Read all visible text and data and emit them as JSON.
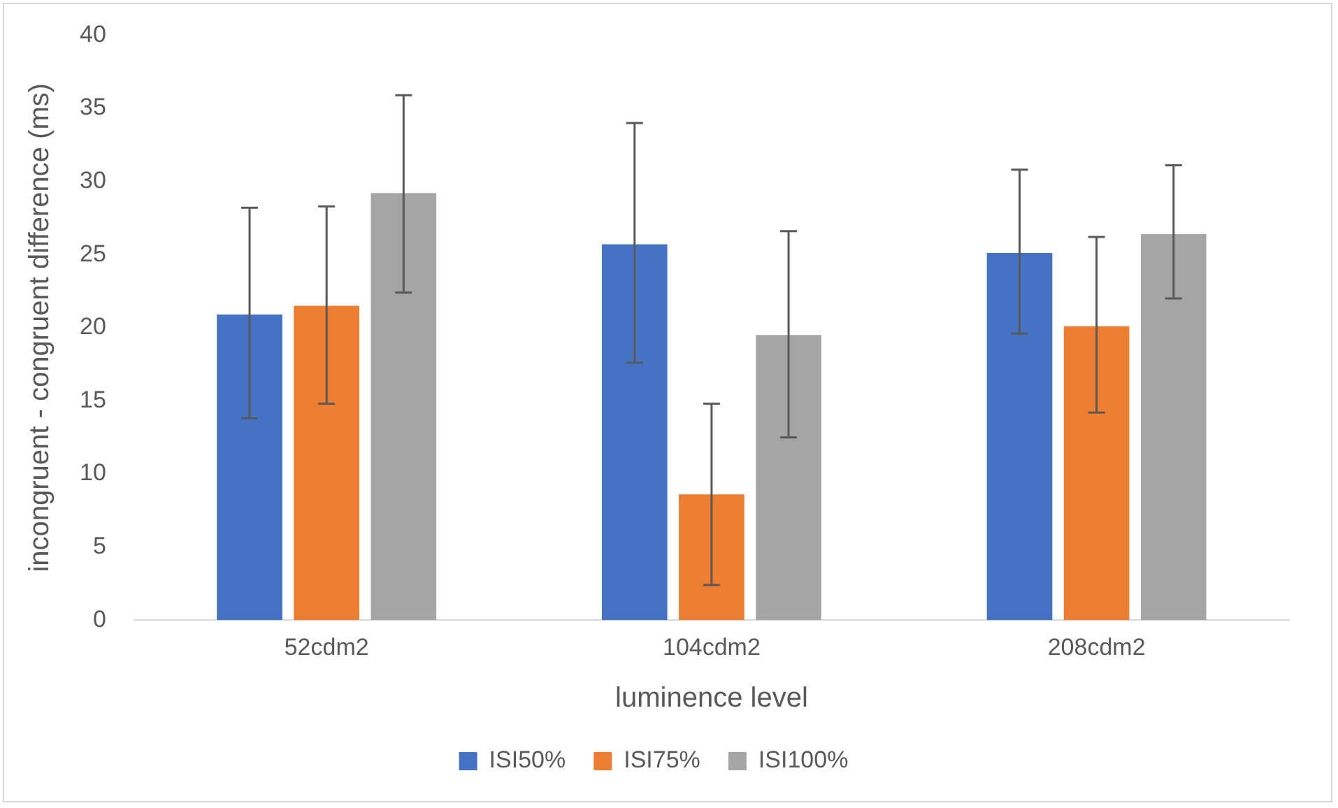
{
  "chart_data": {
    "type": "bar",
    "xlabel": "luminence level",
    "ylabel": "incongruent - congruent difference (ms)",
    "categories": [
      "52cdm2",
      "104cdm2",
      "208cdm2"
    ],
    "series": [
      {
        "name": "ISI50%",
        "color": "#4472c4",
        "values": [
          20.9,
          25.7,
          25.1
        ],
        "errors": [
          [
            13.8,
            28.2
          ],
          [
            17.6,
            34.0
          ],
          [
            19.6,
            30.8
          ]
        ]
      },
      {
        "name": "ISI75%",
        "color": "#ed7d31",
        "values": [
          21.5,
          8.6,
          20.1
        ],
        "errors": [
          [
            14.8,
            28.3
          ],
          [
            2.4,
            14.8
          ],
          [
            14.2,
            26.2
          ]
        ]
      },
      {
        "name": "ISI100%",
        "color": "#a5a5a5",
        "values": [
          29.2,
          19.5,
          26.4
        ],
        "errors": [
          [
            22.4,
            35.9
          ],
          [
            12.5,
            26.6
          ],
          [
            22.0,
            31.1
          ]
        ]
      }
    ],
    "ylim": [
      0,
      40
    ],
    "yticks": [
      0,
      5,
      10,
      15,
      20,
      25,
      30,
      35,
      40
    ],
    "grid": false,
    "legend": "bottom"
  }
}
